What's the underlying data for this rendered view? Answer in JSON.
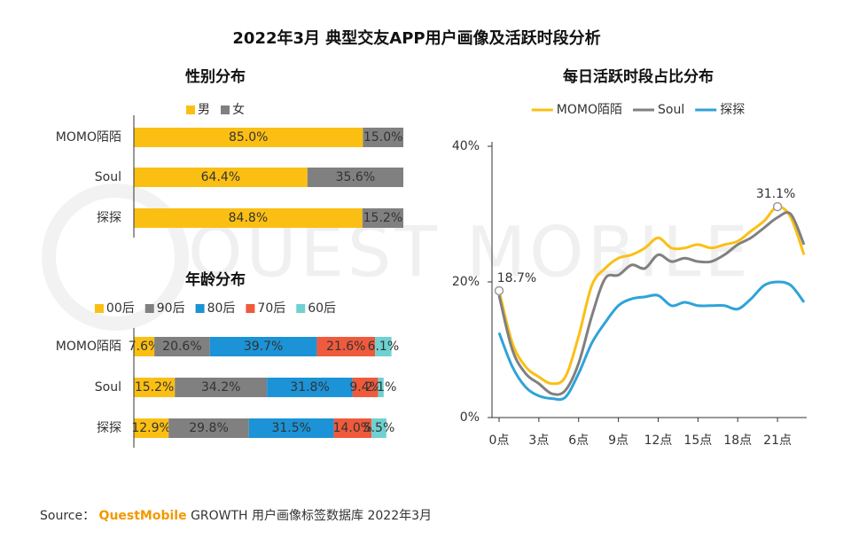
{
  "title": "2022年3月 典型交友APP用户画像及活跃时段分析",
  "watermark": "QUEST MOBILE",
  "source": {
    "label": "Source：",
    "brand": "QuestMobile",
    "text": "GROWTH 用户画像标签数据库 2022年3月"
  },
  "chart_data": [
    {
      "type": "bar",
      "orientation": "horizontal",
      "stacked": true,
      "title": "性别分布",
      "categories": [
        "MOMO陌陌",
        "Soul",
        "探探"
      ],
      "xlim": [
        0,
        100
      ],
      "series": [
        {
          "name": "男",
          "color": "#fbbf14",
          "values": [
            85.0,
            64.4,
            84.8
          ],
          "value_labels": [
            "85.0%",
            "64.4%",
            "84.8%"
          ]
        },
        {
          "name": "女",
          "color": "#808080",
          "values": [
            15.0,
            35.6,
            15.2
          ],
          "value_labels": [
            "15.0%",
            "35.6%",
            "15.2%"
          ]
        }
      ]
    },
    {
      "type": "bar",
      "orientation": "horizontal",
      "stacked": true,
      "title": "年龄分布",
      "categories": [
        "MOMO陌陌",
        "Soul",
        "探探"
      ],
      "xlim": [
        0,
        100
      ],
      "series": [
        {
          "name": "00后",
          "color": "#fbbf14",
          "values": [
            7.6,
            15.2,
            12.9
          ],
          "value_labels": [
            "7.6%",
            "15.2%",
            "12.9%"
          ]
        },
        {
          "name": "90后",
          "color": "#808080",
          "values": [
            20.6,
            34.2,
            29.8
          ],
          "value_labels": [
            "20.6%",
            "34.2%",
            "29.8%"
          ]
        },
        {
          "name": "80后",
          "color": "#1b93d6",
          "values": [
            39.7,
            31.8,
            31.5
          ],
          "value_labels": [
            "39.7%",
            "31.8%",
            "31.5%"
          ]
        },
        {
          "name": "70后",
          "color": "#ef5a3c",
          "values": [
            21.6,
            9.4,
            14.0
          ],
          "value_labels": [
            "21.6%",
            "9.4%",
            "14.0%"
          ]
        },
        {
          "name": "60后",
          "color": "#6fd1d1",
          "values": [
            6.1,
            2.1,
            5.5
          ],
          "value_labels": [
            "6.1%",
            "2.1%",
            "5.5%"
          ]
        }
      ]
    },
    {
      "type": "line",
      "title": "每日活跃时段占比分布",
      "x": [
        0,
        1,
        2,
        3,
        4,
        5,
        6,
        7,
        8,
        9,
        10,
        11,
        12,
        13,
        14,
        15,
        16,
        17,
        18,
        19,
        20,
        21,
        22,
        23
      ],
      "xlim": [
        0,
        23
      ],
      "xticks": [
        {
          "value": 0,
          "label": "0点"
        },
        {
          "value": 3,
          "label": "3点"
        },
        {
          "value": 6,
          "label": "6点"
        },
        {
          "value": 9,
          "label": "9点"
        },
        {
          "value": 12,
          "label": "12点"
        },
        {
          "value": 15,
          "label": "15点"
        },
        {
          "value": 18,
          "label": "18点"
        },
        {
          "value": 21,
          "label": "21点"
        }
      ],
      "ylim": [
        0,
        40
      ],
      "yticks": [
        {
          "value": 0,
          "label": "0%"
        },
        {
          "value": 20,
          "label": "20%"
        },
        {
          "value": 40,
          "label": "40%"
        }
      ],
      "series": [
        {
          "name": "MOMO陌陌",
          "color": "#fbbf14",
          "values": [
            18.7,
            11,
            7.5,
            6,
            5,
            6,
            12,
            19.5,
            22,
            23.5,
            24,
            25,
            26.5,
            25,
            25,
            25.5,
            25,
            25.5,
            26,
            27.5,
            29,
            31.1,
            29.5,
            24
          ],
          "value_labels": [
            "18.7%",
            null,
            null,
            null,
            null,
            null,
            null,
            null,
            null,
            null,
            null,
            null,
            null,
            null,
            null,
            null,
            null,
            null,
            null,
            null,
            null,
            "31.1%",
            null,
            null
          ]
        },
        {
          "name": "Soul",
          "color": "#808080",
          "values": [
            18,
            10,
            6.5,
            5,
            3.5,
            4,
            8,
            15,
            20.5,
            21,
            22.5,
            22,
            24,
            23,
            23.5,
            23,
            23,
            24,
            25.5,
            26.5,
            28,
            29.5,
            30,
            25.5
          ]
        },
        {
          "name": "探探",
          "color": "#2fa3d8",
          "values": [
            12.5,
            7.5,
            4.5,
            3.2,
            2.8,
            3,
            6.5,
            11,
            14,
            16.5,
            17.5,
            17.8,
            18,
            16.5,
            17,
            16.5,
            16.5,
            16.5,
            16,
            17.5,
            19.5,
            20,
            19.5,
            17
          ]
        }
      ]
    }
  ]
}
